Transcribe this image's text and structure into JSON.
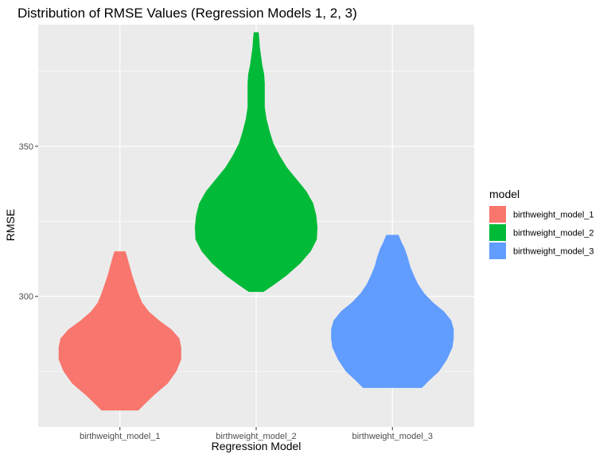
{
  "chart_data": {
    "type": "violin",
    "title": "Distribution of RMSE Values (Regression Models 1, 2, 3)",
    "xlabel": "Regression Model",
    "ylabel": "RMSE",
    "ylim": [
      256.5,
      390.5
    ],
    "yticks": [
      300,
      350
    ],
    "grid": true,
    "legend": {
      "title": "model",
      "position": "right"
    },
    "categories": [
      "birthweight_model_1",
      "birthweight_model_2",
      "birthweight_model_3"
    ],
    "series": [
      {
        "name": "birthweight_model_1",
        "color": "#F8766D",
        "min": 262,
        "max": 315,
        "profile": [
          [
            262,
            0.3
          ],
          [
            264,
            0.4
          ],
          [
            267,
            0.55
          ],
          [
            271,
            0.78
          ],
          [
            275,
            0.92
          ],
          [
            279,
            1.0
          ],
          [
            283,
            1.0
          ],
          [
            286,
            0.97
          ],
          [
            289,
            0.84
          ],
          [
            292,
            0.64
          ],
          [
            295,
            0.47
          ],
          [
            298,
            0.36
          ],
          [
            301,
            0.3
          ],
          [
            304,
            0.25
          ],
          [
            307,
            0.2
          ],
          [
            310,
            0.16
          ],
          [
            313,
            0.12
          ],
          [
            315,
            0.09
          ]
        ]
      },
      {
        "name": "birthweight_model_2",
        "color": "#00BA38",
        "min": 301.5,
        "max": 388,
        "profile": [
          [
            301.5,
            0.12
          ],
          [
            304,
            0.3
          ],
          [
            307,
            0.5
          ],
          [
            311,
            0.72
          ],
          [
            315,
            0.89
          ],
          [
            319,
            0.99
          ],
          [
            323,
            1.0
          ],
          [
            327,
            0.98
          ],
          [
            331,
            0.93
          ],
          [
            335,
            0.82
          ],
          [
            339,
            0.66
          ],
          [
            343,
            0.5
          ],
          [
            347,
            0.38
          ],
          [
            351,
            0.28
          ],
          [
            355,
            0.22
          ],
          [
            359,
            0.17
          ],
          [
            363,
            0.14
          ],
          [
            367,
            0.14
          ],
          [
            371,
            0.14
          ],
          [
            374,
            0.13
          ],
          [
            377,
            0.1
          ],
          [
            380,
            0.08
          ],
          [
            383,
            0.06
          ],
          [
            386,
            0.05
          ],
          [
            388,
            0.04
          ]
        ]
      },
      {
        "name": "birthweight_model_3",
        "color": "#619CFF",
        "min": 269.5,
        "max": 320.5,
        "profile": [
          [
            269.5,
            0.48
          ],
          [
            272,
            0.6
          ],
          [
            275,
            0.76
          ],
          [
            279,
            0.89
          ],
          [
            283,
            0.98
          ],
          [
            286,
            1.0
          ],
          [
            289,
            1.0
          ],
          [
            292,
            0.96
          ],
          [
            295,
            0.84
          ],
          [
            298,
            0.66
          ],
          [
            301,
            0.52
          ],
          [
            304,
            0.42
          ],
          [
            307,
            0.35
          ],
          [
            310,
            0.29
          ],
          [
            313,
            0.25
          ],
          [
            316,
            0.2
          ],
          [
            318,
            0.15
          ],
          [
            320.5,
            0.1
          ]
        ]
      }
    ]
  }
}
